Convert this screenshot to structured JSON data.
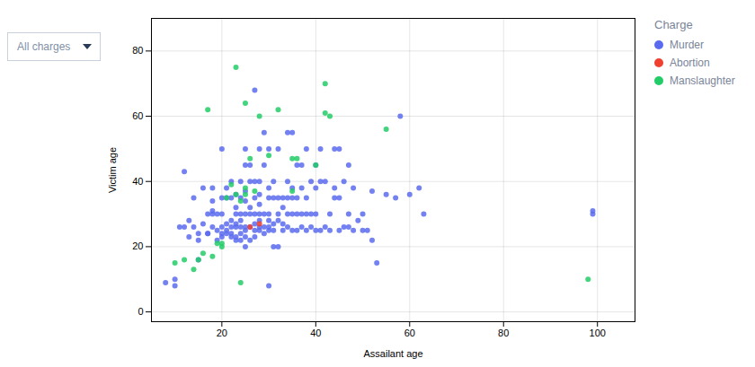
{
  "chart_data": {
    "type": "scatter",
    "title": "",
    "xlabel": "Assailant age",
    "ylabel": "Victim age",
    "xlim": [
      5,
      108
    ],
    "ylim": [
      -3,
      90
    ],
    "xticks": [
      20,
      40,
      60,
      80,
      100
    ],
    "yticks": [
      0,
      20,
      40,
      60,
      80
    ],
    "grid": true,
    "legend": "right",
    "legend_title": "Charge",
    "annotations": [
      "All charges"
    ],
    "series": [
      {
        "name": "Murder",
        "color": "#5b6bef",
        "x": [
          8,
          10,
          10,
          11,
          12,
          12,
          13,
          13,
          14,
          14,
          15,
          15,
          15,
          16,
          16,
          17,
          17,
          17,
          18,
          18,
          18,
          18,
          18,
          19,
          19,
          19,
          20,
          20,
          20,
          20,
          20,
          20,
          21,
          21,
          21,
          21,
          21,
          22,
          22,
          22,
          22,
          22,
          22,
          23,
          23,
          23,
          23,
          23,
          23,
          23,
          24,
          24,
          24,
          24,
          24,
          24,
          24,
          25,
          25,
          25,
          25,
          25,
          25,
          25,
          25,
          25,
          26,
          26,
          26,
          26,
          26,
          26,
          27,
          27,
          27,
          27,
          27,
          27,
          27,
          28,
          28,
          28,
          28,
          28,
          28,
          28,
          28,
          29,
          29,
          29,
          29,
          29,
          30,
          30,
          30,
          30,
          30,
          30,
          30,
          30,
          31,
          31,
          31,
          31,
          31,
          32,
          32,
          32,
          32,
          32,
          33,
          33,
          33,
          33,
          34,
          34,
          34,
          34,
          34,
          35,
          35,
          35,
          35,
          35,
          36,
          36,
          36,
          36,
          37,
          37,
          37,
          37,
          38,
          38,
          38,
          38,
          39,
          39,
          39,
          40,
          40,
          40,
          40,
          41,
          41,
          41,
          42,
          42,
          43,
          43,
          44,
          44,
          44,
          45,
          45,
          45,
          46,
          46,
          47,
          47,
          47,
          48,
          48,
          49,
          50,
          50,
          51,
          52,
          52,
          53,
          55,
          57,
          58,
          60,
          62,
          63,
          99,
          99
        ],
        "values": [
          9,
          8,
          10,
          26,
          26,
          43,
          23,
          28,
          26,
          35,
          16,
          22,
          24,
          27,
          38,
          24,
          24,
          30,
          26,
          30,
          31,
          34,
          38,
          22,
          25,
          30,
          23,
          24,
          26,
          30,
          35,
          50,
          24,
          25,
          27,
          35,
          38,
          23,
          24,
          26,
          28,
          35,
          40,
          22,
          23,
          26,
          27,
          30,
          32,
          36,
          22,
          24,
          26,
          28,
          30,
          35,
          40,
          20,
          23,
          25,
          26,
          30,
          34,
          37,
          45,
          50,
          22,
          26,
          30,
          32,
          40,
          45,
          23,
          25,
          27,
          30,
          35,
          40,
          68,
          25,
          26,
          28,
          30,
          33,
          36,
          40,
          50,
          24,
          26,
          30,
          45,
          55,
          8,
          25,
          26,
          28,
          30,
          35,
          38,
          50,
          20,
          25,
          27,
          35,
          40,
          20,
          28,
          30,
          35,
          50,
          25,
          27,
          32,
          35,
          26,
          30,
          35,
          40,
          55,
          25,
          30,
          35,
          38,
          55,
          25,
          30,
          35,
          45,
          26,
          30,
          38,
          45,
          25,
          30,
          35,
          50,
          26,
          30,
          40,
          25,
          30,
          38,
          45,
          25,
          40,
          50,
          26,
          40,
          25,
          30,
          35,
          38,
          50,
          25,
          35,
          50,
          26,
          40,
          26,
          30,
          45,
          25,
          38,
          28,
          25,
          30,
          25,
          22,
          37,
          15,
          36,
          35,
          60,
          36,
          38,
          30,
          30,
          31
        ]
      },
      {
        "name": "Abortion",
        "color": "#f04030",
        "x": [
          26,
          28
        ],
        "values": [
          26,
          27
        ]
      },
      {
        "name": "Manslaughter",
        "color": "#22cc66",
        "x": [
          10,
          12,
          14,
          15,
          16,
          17,
          18,
          19,
          20,
          20,
          21,
          22,
          23,
          23,
          24,
          24,
          25,
          25,
          25,
          26,
          27,
          28,
          30,
          32,
          35,
          35,
          36,
          40,
          42,
          42,
          43,
          55,
          98
        ],
        "values": [
          15,
          16,
          13,
          16,
          18,
          62,
          17,
          21,
          20,
          21,
          35,
          39,
          36,
          75,
          34,
          9,
          36,
          38,
          64,
          47,
          37,
          60,
          48,
          62,
          37,
          47,
          47,
          45,
          61,
          70,
          60,
          56,
          10
        ]
      }
    ]
  }
}
